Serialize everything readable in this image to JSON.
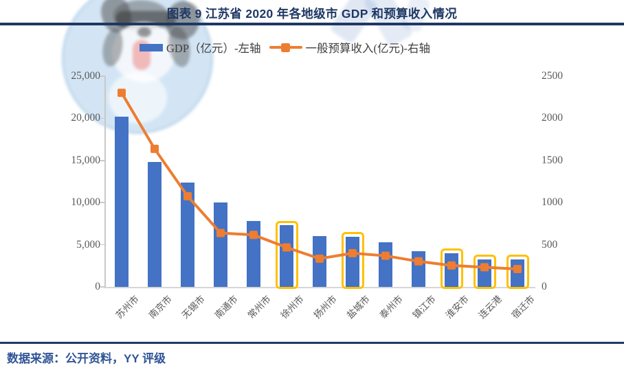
{
  "header": {
    "title": "图表 9 江苏省 2020 年各地级市 GDP 和预算收入情况"
  },
  "legend": [
    {
      "label": "GDP（亿元）-左轴",
      "swatch": "bar-swatch",
      "color": "#4472C4"
    },
    {
      "label": "一般预算收入(亿元)-右轴",
      "swatch": "line-marker-swatch",
      "color": "#ED7D31"
    }
  ],
  "chart_data": {
    "type": "bar+line",
    "categories": [
      "苏州市",
      "南京市",
      "无锡市",
      "南通市",
      "常州市",
      "徐州市",
      "扬州市",
      "盐城市",
      "泰州市",
      "镇江市",
      "淮安市",
      "连云港",
      "宿迁市"
    ],
    "series": [
      {
        "name": "GDP（亿元）-左轴",
        "type": "bar",
        "axis": "left",
        "color": "#4472C4",
        "values": [
          20170,
          14818,
          12370,
          10036,
          7805,
          7320,
          6048,
          5953,
          5313,
          4220,
          4025,
          3277,
          3262
        ]
      },
      {
        "name": "一般预算收入(亿元)-右轴",
        "type": "line",
        "axis": "right",
        "color": "#ED7D31",
        "marker": "square",
        "values": [
          2303,
          1638,
          1076,
          639,
          617,
          468,
          335,
          400,
          369,
          303,
          254,
          233,
          212
        ]
      }
    ],
    "left_axis": {
      "min": 0,
      "max": 25000,
      "tick_step": 5000,
      "tick_labels": [
        "0",
        "5,000",
        "10,000",
        "15,000",
        "20,000",
        "25,000"
      ]
    },
    "right_axis": {
      "min": 0,
      "max": 2500,
      "tick_step": 500,
      "tick_labels": [
        "0",
        "500",
        "1000",
        "1500",
        "2000",
        "2500"
      ]
    },
    "highlighted_categories": [
      "徐州市",
      "盐城市",
      "淮安市",
      "连云港",
      "宿迁市"
    ],
    "highlight_color": "#FFC000",
    "grid": false,
    "legend_position": "top"
  },
  "footer": {
    "source_text": "数据来源：公开资料，YY 评级"
  },
  "colors": {
    "bar": "#4472C4",
    "line": "#ED7D31",
    "highlight": "#FFC000",
    "title": "#1F3864",
    "rule": "#1F3864",
    "footer_text": "#2F5496",
    "axis_text": "#595959",
    "axis_line": "#C8C8C8"
  }
}
